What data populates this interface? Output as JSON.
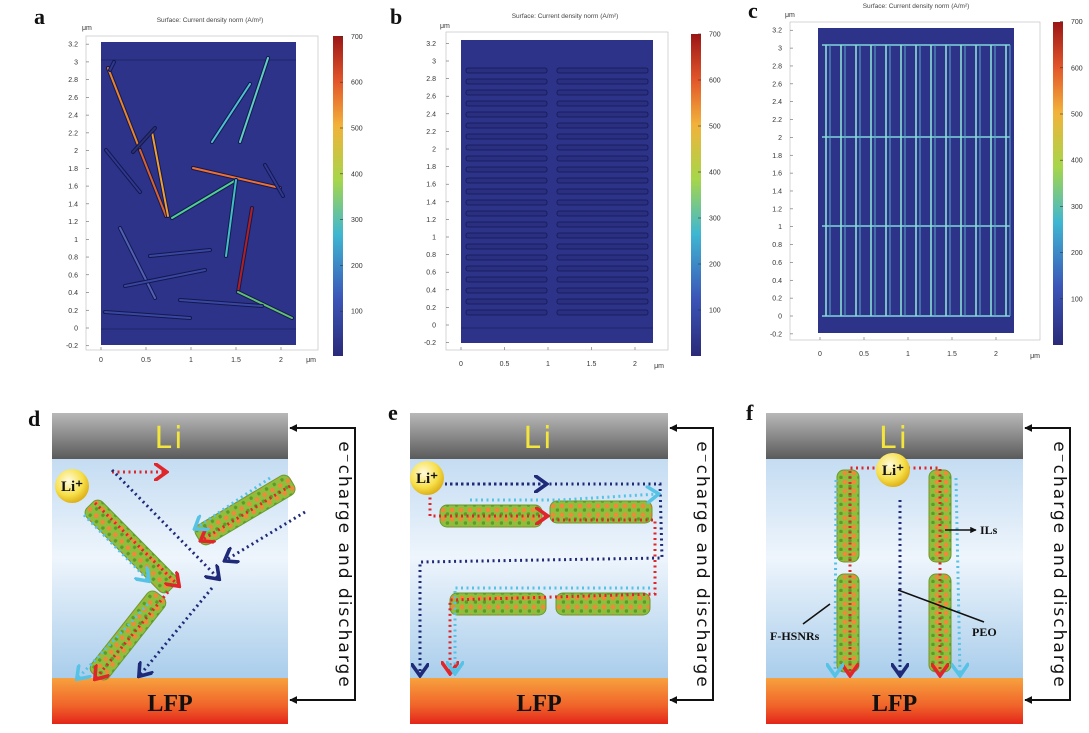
{
  "figure": {
    "simulations": [
      {
        "label": "a",
        "title": "Surface: Current density norm (A/m²)",
        "axis_unit": "μm",
        "yticks": [
          -0.2,
          0,
          0.2,
          0.4,
          0.6,
          0.8,
          1,
          1.2,
          1.4,
          1.6,
          1.8,
          2,
          2.2,
          2.4,
          2.6,
          2.8,
          3,
          3.2
        ],
        "xticks": [
          0,
          0.5,
          1,
          1.5,
          2
        ],
        "colorbar_ticks": [
          100,
          200,
          300,
          400,
          500,
          600,
          700
        ]
      },
      {
        "label": "b",
        "title": "Surface: Current density norm (A/m²)",
        "axis_unit": "μm",
        "yticks": [
          -0.2,
          0,
          0.2,
          0.4,
          0.6,
          0.8,
          1,
          1.2,
          1.4,
          1.6,
          1.8,
          2,
          2.2,
          2.4,
          2.6,
          2.8,
          3,
          3.2
        ],
        "xticks": [
          0,
          0.5,
          1,
          1.5,
          2
        ],
        "colorbar_ticks": [
          100,
          200,
          300,
          400,
          500,
          600,
          700
        ]
      },
      {
        "label": "c",
        "title": "Surface: Current density norm (A/m²)",
        "axis_unit": "μm",
        "yticks": [
          -0.2,
          0,
          0.2,
          0.4,
          0.6,
          0.8,
          1,
          1.2,
          1.4,
          1.6,
          1.8,
          2,
          2.2,
          2.4,
          2.6,
          2.8,
          3,
          3.2
        ],
        "xticks": [
          0,
          0.5,
          1,
          1.5,
          2
        ],
        "colorbar_ticks": [
          100,
          200,
          300,
          400,
          500,
          600,
          700
        ]
      }
    ],
    "schematics": [
      {
        "label": "d",
        "anode": "Li",
        "cathode": "LFP",
        "ion": "Li⁺",
        "circuit": "e⁻charge and discharge"
      },
      {
        "label": "e",
        "anode": "Li",
        "cathode": "LFP",
        "ion": "Li⁺",
        "circuit": "e⁻charge and discharge"
      },
      {
        "label": "f",
        "anode": "Li",
        "cathode": "LFP",
        "ion": "Li⁺",
        "circuit": "e⁻charge and discharge",
        "annotations": [
          "ILs",
          "F-HSNRs",
          "PEO"
        ]
      }
    ]
  }
}
